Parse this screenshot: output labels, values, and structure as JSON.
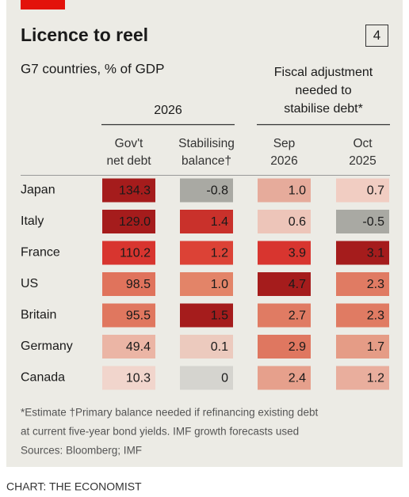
{
  "header": {
    "title": "Licence to reel",
    "chart_number": "4",
    "subtitle": "G7 countries, % of GDP"
  },
  "column_groups": [
    {
      "lines": [
        "2026"
      ]
    },
    {
      "lines": [
        "Fiscal adjustment",
        "needed to",
        "stabilise debt*"
      ]
    }
  ],
  "columns": [
    {
      "lines": [
        "Gov't",
        "net debt"
      ]
    },
    {
      "lines": [
        "Stabilising",
        "balance†"
      ]
    },
    {
      "lines": [
        "Sep",
        "2026"
      ]
    },
    {
      "lines": [
        "Oct",
        "2025"
      ]
    }
  ],
  "table": {
    "rows": [
      {
        "label": "Japan",
        "values": [
          "134.3",
          "-0.8",
          "1.0",
          "0.7"
        ],
        "colors": [
          "#a51c1c",
          "#a9a9a3",
          "#e6ab9b",
          "#f1cdc2"
        ]
      },
      {
        "label": "Italy",
        "values": [
          "129.0",
          "1.4",
          "0.6",
          "-0.5"
        ],
        "colors": [
          "#a51c1c",
          "#c9312b",
          "#edc5b9",
          "#a9a9a3"
        ]
      },
      {
        "label": "France",
        "values": [
          "110.2",
          "1.2",
          "3.9",
          "3.1"
        ],
        "colors": [
          "#d8352f",
          "#dc4236",
          "#d8352f",
          "#a51c1c"
        ]
      },
      {
        "label": "US",
        "values": [
          "98.5",
          "1.0",
          "4.7",
          "2.3"
        ],
        "colors": [
          "#e0735c",
          "#e38468",
          "#a51c1c",
          "#e07b63"
        ]
      },
      {
        "label": "Britain",
        "values": [
          "95.5",
          "1.5",
          "2.7",
          "2.3"
        ],
        "colors": [
          "#e0775f",
          "#a51c1c",
          "#e07b63",
          "#e07b63"
        ]
      },
      {
        "label": "Germany",
        "values": [
          "49.4",
          "0.1",
          "2.9",
          "1.7"
        ],
        "colors": [
          "#ebb5a5",
          "#eccabe",
          "#df7760",
          "#e59c86"
        ]
      },
      {
        "label": "Canada",
        "values": [
          "10.3",
          "0",
          "2.4",
          "1.2"
        ],
        "colors": [
          "#f1d5cc",
          "#d5d4cf",
          "#e6a08c",
          "#e9ae9d"
        ]
      }
    ]
  },
  "footnotes": [
    "*Estimate   †Primary balance needed if refinancing existing debt",
    "at current five-year bond yields. IMF growth forecasts used",
    "Sources: Bloomberg; IMF"
  ],
  "source": "CHART: THE ECONOMIST"
}
